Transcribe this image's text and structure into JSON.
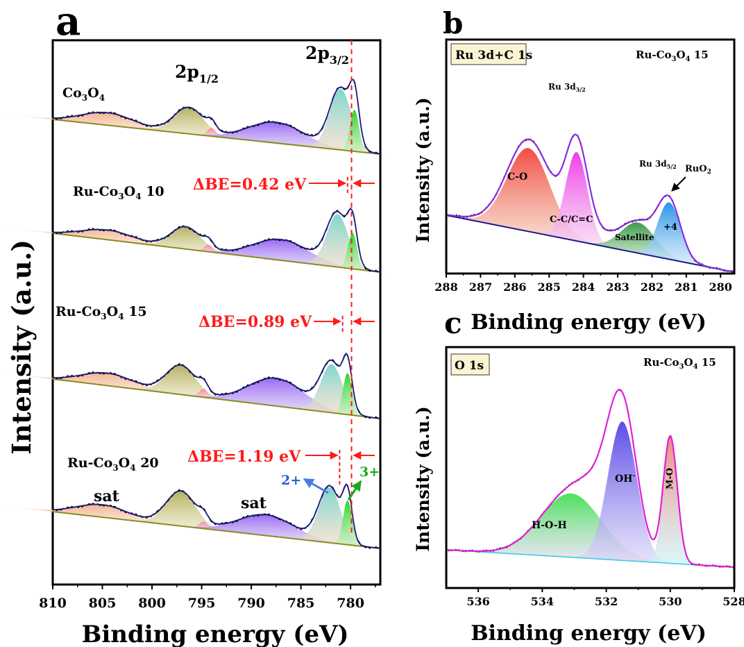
{
  "panels": {
    "a": {
      "letter": "a",
      "xlabel": "Binding energy (eV)",
      "ylabel": "Intensity (a.u.)",
      "x_ticks": [
        "810",
        "805",
        "800",
        "795",
        "790",
        "785",
        "780"
      ],
      "peak_labels": {
        "p12": "2p",
        "p12_sub": "1/2",
        "p32": "2p",
        "p32_sub": "3/2"
      },
      "samples": [
        {
          "name_main": "Co",
          "name_sub1": "3",
          "name_mid": "O",
          "name_sub2": "4",
          "name_tail": ""
        },
        {
          "name_main": "Ru-Co",
          "name_sub1": "3",
          "name_mid": "O",
          "name_sub2": "4",
          "name_tail": " 10",
          "delta": "ΔBE=0.42 eV"
        },
        {
          "name_main": "Ru-Co",
          "name_sub1": "3",
          "name_mid": "O",
          "name_sub2": "4",
          "name_tail": " 15",
          "delta": "ΔBE=0.89 eV"
        },
        {
          "name_main": "Ru-Co",
          "name_sub1": "3",
          "name_mid": "O",
          "name_sub2": "4",
          "name_tail": " 20",
          "delta": "ΔBE=1.19 eV"
        }
      ],
      "sat1": "sat",
      "sat2": "sat",
      "ox2": "2+",
      "ox3": "3+"
    },
    "b": {
      "letter": "b",
      "region": "Ru 3d+C 1s",
      "sample_main": "Ru-Co",
      "sample_sub1": "3",
      "sample_mid": "O",
      "sample_sub2": "4",
      "sample_tail": " 15",
      "ylabel": "Intensity (a.u.)",
      "xlabel": "Binding energy (eV)",
      "x_ticks": [
        "288",
        "287",
        "286",
        "285",
        "284",
        "283",
        "282",
        "281",
        "280"
      ],
      "labels": {
        "ru32": "Ru 3d",
        "ru32_sub": "3/2",
        "ru52": "Ru 3d",
        "ru52_sub": "5/2",
        "ruo2": "RuO",
        "ruo2_sub": "2",
        "co": "C-O",
        "cc": "C-C/C=C",
        "sat": "Satellite",
        "plus4": "+4"
      }
    },
    "c": {
      "letter": "c",
      "region": "O 1s",
      "sample_main": "Ru-Co",
      "sample_sub1": "3",
      "sample_mid": "O",
      "sample_sub2": "4",
      "sample_tail": " 15",
      "ylabel": "Intensity (a.u.)",
      "xlabel": "Binding energy (eV)",
      "x_ticks": [
        "536",
        "534",
        "532",
        "530",
        "528"
      ],
      "labels": {
        "hoh": "H-O-H",
        "oh": "OH",
        "oh_sup": "-",
        "mo": "M-O"
      }
    }
  },
  "chart_data": [
    {
      "type": "area",
      "title": "",
      "xlabel": "Binding energy (eV)",
      "ylabel": "Intensity (a.u.)",
      "xlim": [
        810,
        777
      ],
      "x_ticks": [
        810,
        805,
        800,
        795,
        790,
        785,
        780
      ],
      "series": [
        {
          "name": "Co3O4",
          "fitted_peaks_eV": {
            "sat": 804.5,
            "2p1/2": 796.3,
            "sat2": 787.5,
            "Co2+": 781.0,
            "Co3+": 779.6
          }
        },
        {
          "name": "Ru-Co3O4 10",
          "delta_BE_eV": 0.42,
          "fitted_peaks_eV": {
            "sat": 804.5,
            "2p1/2": 796.6,
            "sat2": 787.0,
            "Co2+": 781.3,
            "Co3+": 779.8
          }
        },
        {
          "name": "Ru-Co3O4 15",
          "delta_BE_eV": 0.89,
          "fitted_peaks_eV": {
            "sat": 804.5,
            "2p1/2": 797.1,
            "sat2": 787.5,
            "Co2+": 781.9,
            "Co3+": 780.3
          }
        },
        {
          "name": "Ru-Co3O4 20",
          "delta_BE_eV": 1.19,
          "fitted_peaks_eV": {
            "sat": 805.0,
            "2p1/2": 797.1,
            "sat2": 788.5,
            "Co2+": 782.1,
            "Co3+": 780.3
          }
        }
      ]
    },
    {
      "type": "area",
      "title": "Ru 3d+C 1s",
      "xlabel": "Binding energy (eV)",
      "ylabel": "Intensity (a.u.)",
      "xlim": [
        288,
        279.6
      ],
      "x_ticks": [
        288,
        287,
        286,
        285,
        284,
        283,
        282,
        281,
        280
      ],
      "fitted_peaks_eV": {
        "C-O": 285.6,
        "C-C/C=C": 284.2,
        "Satellite": 282.4,
        "+4 (Ru 3d5/2)": 281.5
      },
      "envelope_maxima_eV": {
        "Ru 3d3/2": 284.2,
        "Ru 3d5/2": 281.6
      }
    },
    {
      "type": "area",
      "title": "O 1s",
      "xlabel": "Binding energy (eV)",
      "ylabel": "Intensity (a.u.)",
      "xlim": [
        537,
        528
      ],
      "x_ticks": [
        536,
        534,
        532,
        530,
        528
      ],
      "fitted_peaks_eV": {
        "H-O-H": 533.1,
        "OH-": 531.5,
        "M-O": 530.0
      }
    }
  ]
}
